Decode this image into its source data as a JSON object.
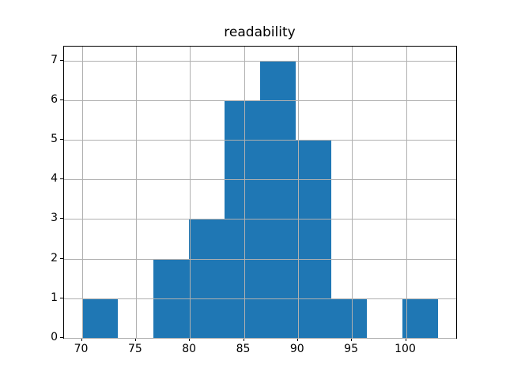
{
  "title": "readability",
  "chart_data": {
    "type": "bar",
    "subtype": "histogram",
    "title": "readability",
    "xlabel": "",
    "ylabel": "",
    "bin_edges": [
      70.0,
      73.3,
      76.6,
      79.9,
      83.2,
      86.5,
      89.8,
      93.1,
      96.4,
      99.7,
      103.0
    ],
    "counts": [
      1,
      0,
      2,
      3,
      6,
      7,
      5,
      1,
      0,
      1
    ],
    "x_ticks": [
      70,
      75,
      80,
      85,
      90,
      95,
      100
    ],
    "y_ticks": [
      0,
      1,
      2,
      3,
      4,
      5,
      6,
      7
    ],
    "xlim": [
      68.35,
      104.65
    ],
    "ylim": [
      0,
      7.35
    ],
    "grid": true,
    "legend": "none",
    "bar_color": "#1f77b4",
    "grid_color": "#b0b0b0",
    "spine_color": "#000000",
    "background_color": "#ffffff"
  }
}
